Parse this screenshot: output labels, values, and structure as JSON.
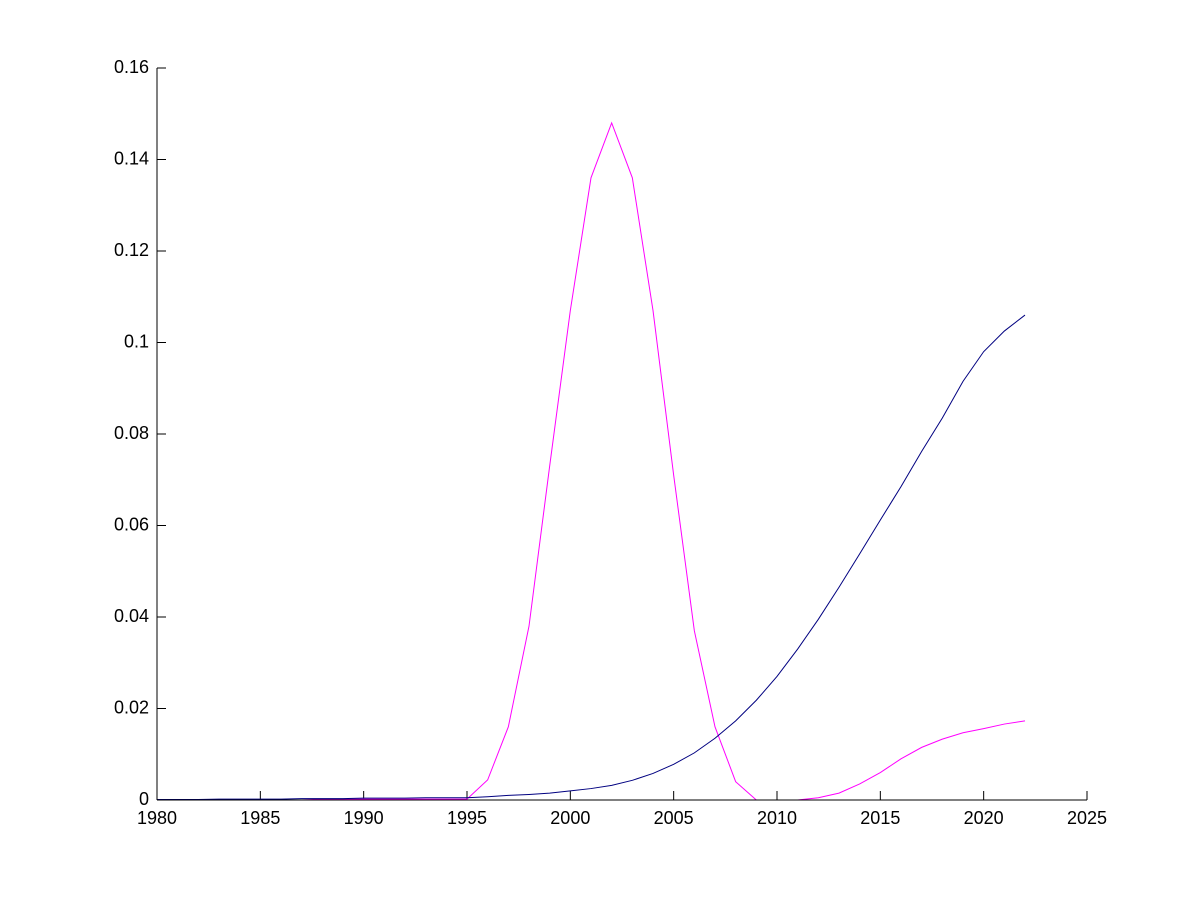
{
  "chart_data": {
    "type": "line",
    "x": [
      1980,
      1981,
      1982,
      1983,
      1984,
      1985,
      1986,
      1987,
      1988,
      1989,
      1990,
      1991,
      1992,
      1993,
      1994,
      1995,
      1996,
      1997,
      1998,
      1999,
      2000,
      2001,
      2002,
      2003,
      2004,
      2005,
      2006,
      2007,
      2008,
      2009,
      2010,
      2011,
      2012,
      2013,
      2014,
      2015,
      2016,
      2017,
      2018,
      2019,
      2020,
      2021,
      2022
    ],
    "series": [
      {
        "color": "#ff00ff",
        "values": [
          0,
          0,
          0,
          0,
          0,
          0,
          0,
          0,
          0.0002,
          0.0002,
          0.0002,
          0.0002,
          0.0002,
          0.0002,
          0.0002,
          0.0002,
          0.0044,
          0.016,
          0.038,
          0.073,
          0.107,
          0.136,
          0.148,
          0.136,
          0.107,
          0.071,
          0.037,
          0.016,
          0.004,
          0,
          0,
          0,
          0.0005,
          0.0015,
          0.0035,
          0.006,
          0.009,
          0.0115,
          0.0133,
          0.0147,
          0.0156,
          0.0166,
          0.0173
        ]
      },
      {
        "color": "#000080",
        "values": [
          0.0001,
          0.0001,
          0.0001,
          0.0002,
          0.0002,
          0.0002,
          0.0002,
          0.0003,
          0.0003,
          0.0003,
          0.0004,
          0.0004,
          0.0004,
          0.0005,
          0.0005,
          0.0005,
          0.0007,
          0.001,
          0.0012,
          0.0015,
          0.002,
          0.0025,
          0.0032,
          0.0043,
          0.0058,
          0.0078,
          0.0103,
          0.0135,
          0.0173,
          0.0218,
          0.027,
          0.033,
          0.0395,
          0.0465,
          0.0538,
          0.0612,
          0.0685,
          0.0762,
          0.0835,
          0.0915,
          0.098,
          0.1025,
          0.106
        ]
      }
    ],
    "xlim": [
      1980,
      2025
    ],
    "xticks": [
      1980,
      1985,
      1990,
      1995,
      2000,
      2005,
      2010,
      2015,
      2020,
      2025
    ],
    "ylim": [
      0,
      0.16
    ],
    "yticks": [
      0,
      0.02,
      0.04,
      0.06,
      0.08,
      0.1,
      0.12,
      0.14,
      0.16
    ]
  }
}
